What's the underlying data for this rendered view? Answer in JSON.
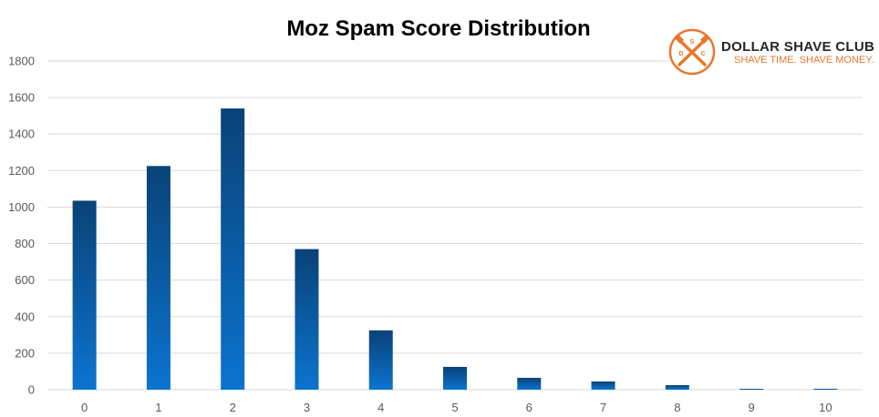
{
  "chart_data": {
    "type": "bar",
    "title": "Moz Spam Score Distribution",
    "xlabel": "",
    "ylabel": "",
    "categories": [
      "0",
      "1",
      "2",
      "3",
      "4",
      "5",
      "6",
      "7",
      "8",
      "9",
      "10"
    ],
    "values": [
      1035,
      1225,
      1540,
      770,
      325,
      125,
      65,
      45,
      25,
      5,
      5
    ],
    "ylim": [
      0,
      1800
    ],
    "yticks": [
      0,
      200,
      400,
      600,
      800,
      1000,
      1200,
      1400,
      1600,
      1800
    ],
    "grid": true,
    "legend": "none",
    "colors": {
      "bar_top": "#0a4277",
      "bar_bottom": "#0b74d0",
      "grid": "#d9d9d9"
    }
  },
  "logo": {
    "name": "DOLLAR SHAVE CLUB",
    "tagline": "SHAVE TIME. SHAVE MONEY.",
    "letters": [
      "S",
      "D",
      "C"
    ],
    "color": "#e8772e"
  }
}
